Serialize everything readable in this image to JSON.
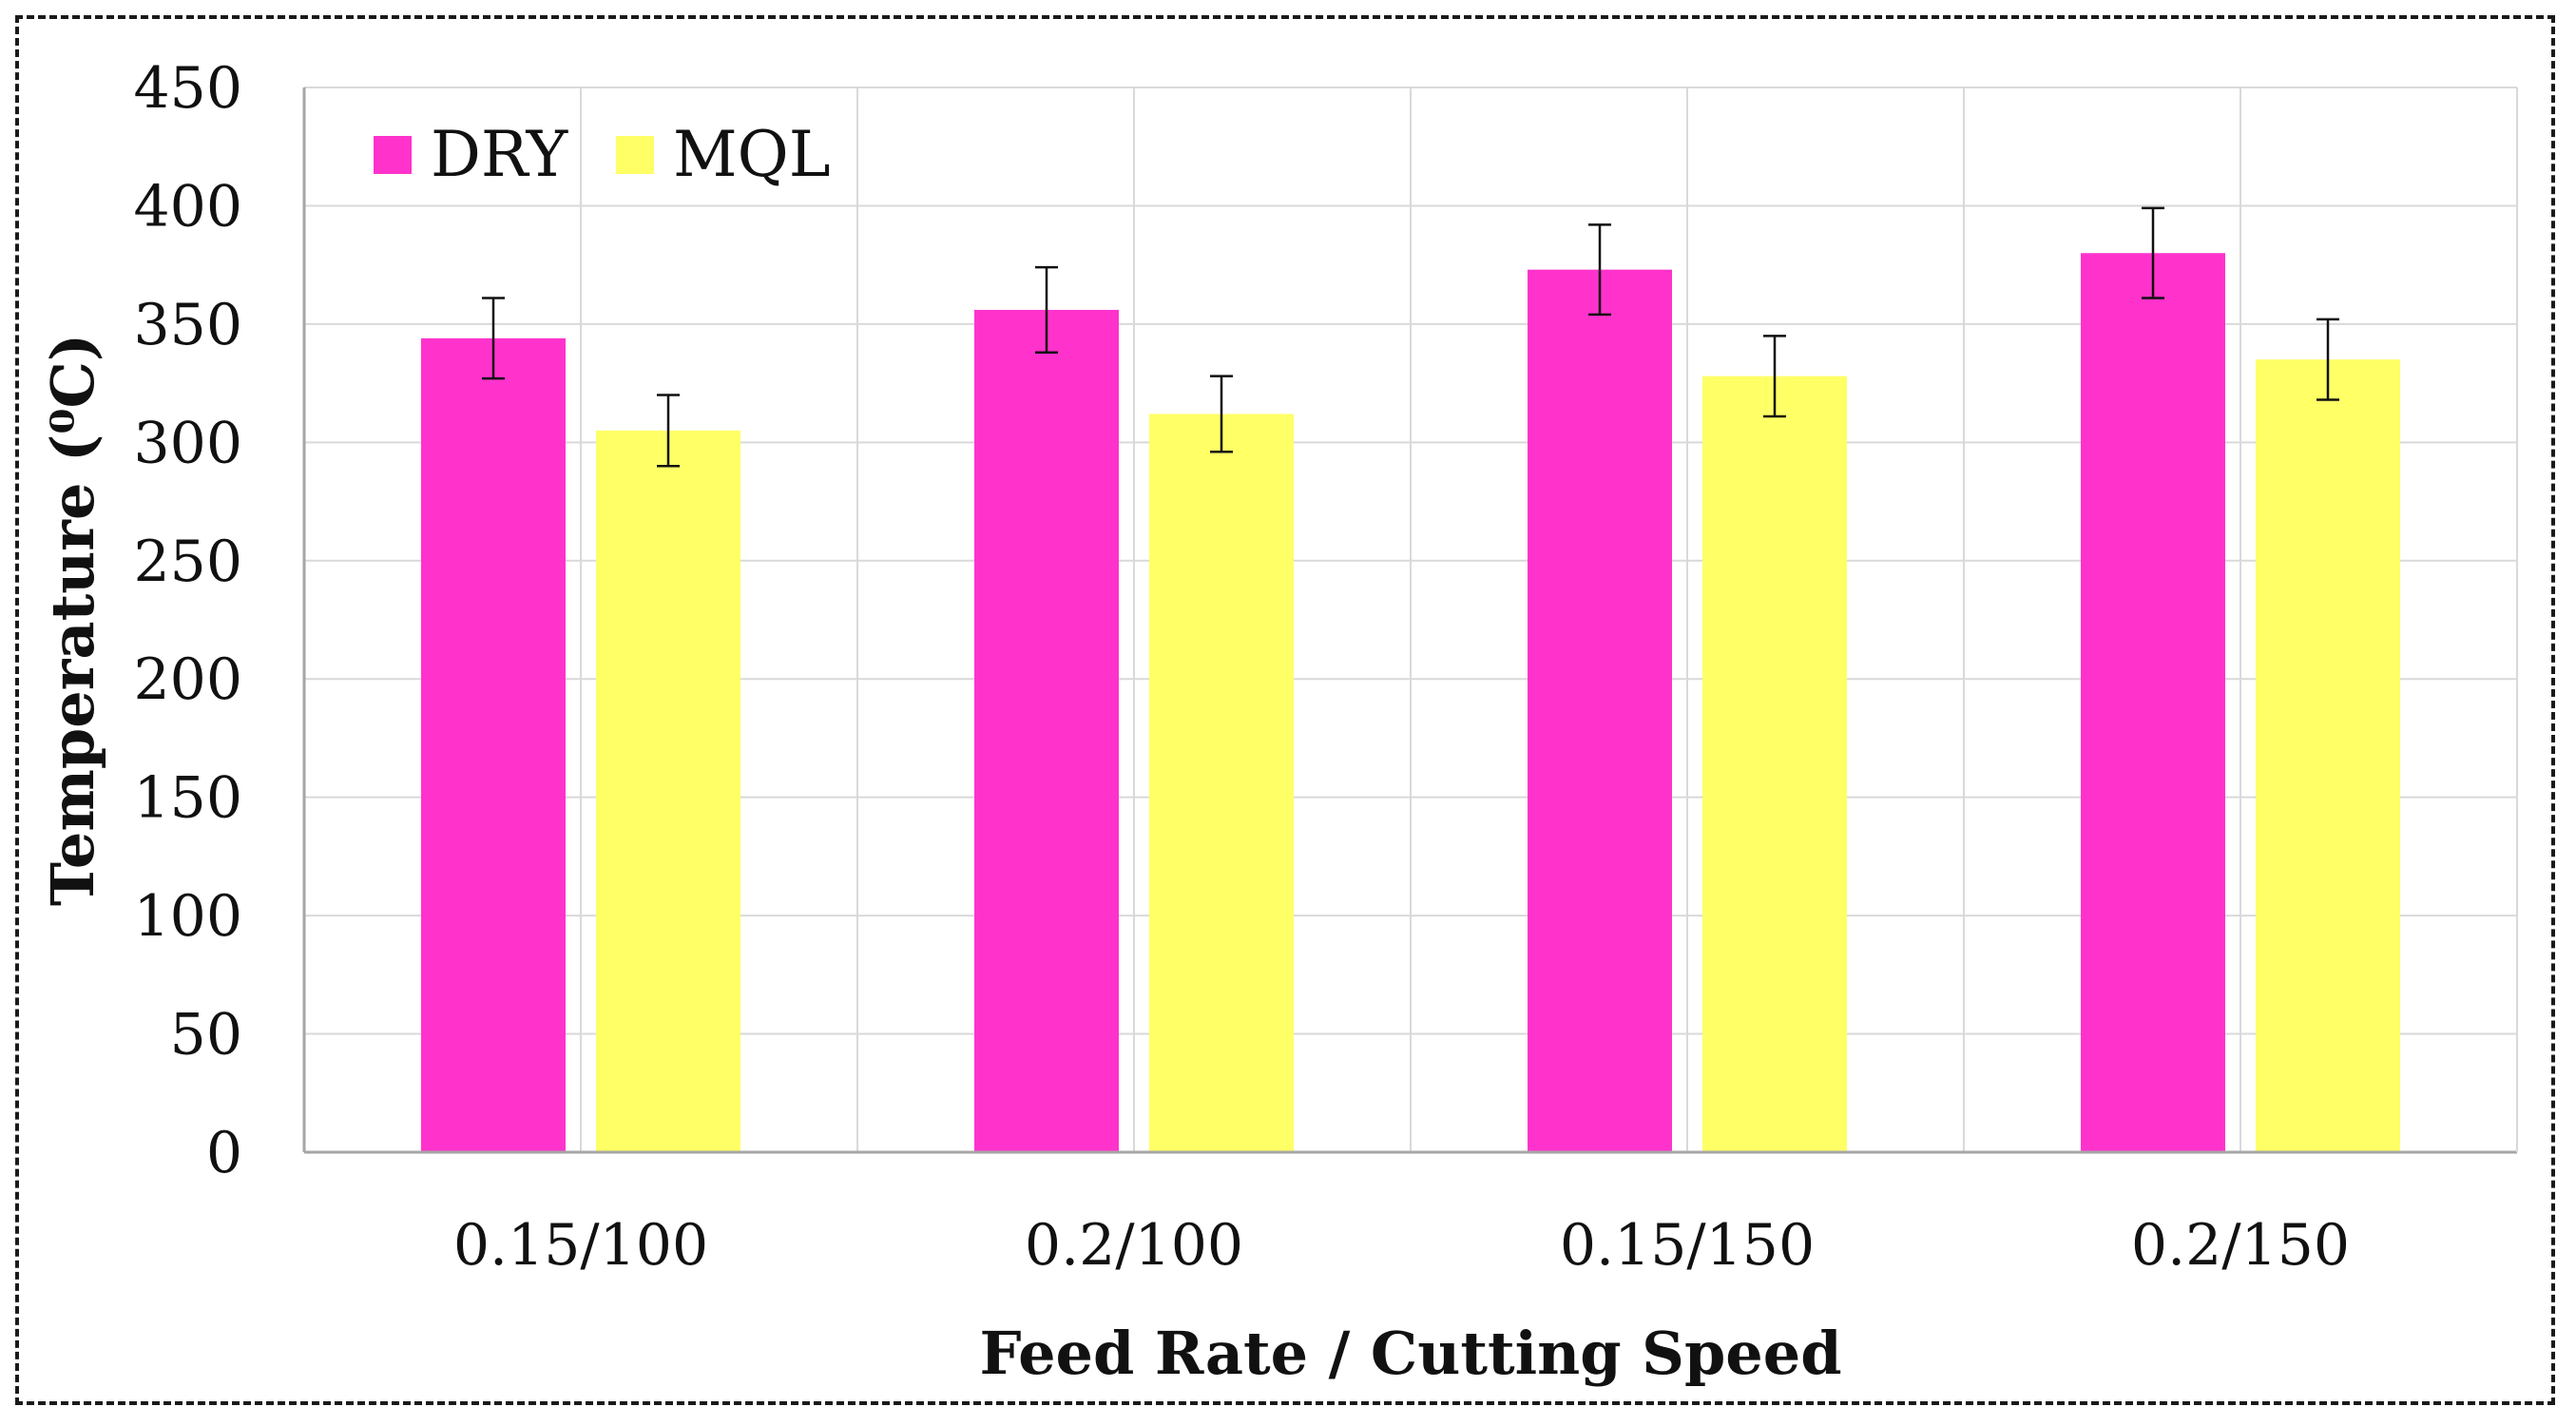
{
  "chart_data": {
    "type": "bar",
    "title": "",
    "xlabel": "Feed Rate / Cutting Speed",
    "ylabel": "Temperature (⁰C)",
    "ylim": [
      0,
      450
    ],
    "yticks": [
      0,
      50,
      100,
      150,
      200,
      250,
      300,
      350,
      400,
      450
    ],
    "grid": true,
    "legend_position": "top-left",
    "categories": [
      "0.15/100",
      "0.2/100",
      "0.15/150",
      "0.2/150"
    ],
    "series": [
      {
        "name": "DRY",
        "color": "#ff33cc",
        "values": [
          344,
          356,
          373,
          380
        ],
        "errors": [
          17,
          18,
          19,
          19
        ]
      },
      {
        "name": "MQL",
        "color": "#ffff66",
        "values": [
          305,
          312,
          328,
          335
        ],
        "errors": [
          15,
          16,
          17,
          17
        ]
      }
    ]
  }
}
